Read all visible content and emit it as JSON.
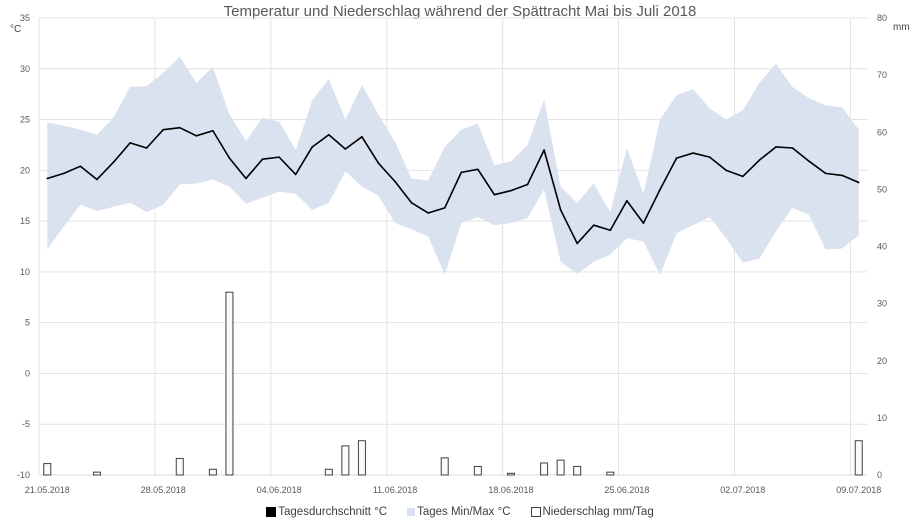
{
  "chart_data": {
    "type": "line",
    "title": "Temperatur und Niederschlag während der Spättracht Mai bis Juli 2018",
    "ylabel_left": "°C",
    "ylabel_right": "mm",
    "ylim_left": [
      -10,
      35
    ],
    "ylim_right": [
      0,
      80
    ],
    "yticks_left": [
      35,
      30,
      25,
      20,
      15,
      10,
      5,
      0,
      -5,
      -10
    ],
    "yticks_right": [
      80,
      70,
      60,
      50,
      40,
      30,
      20,
      10,
      0
    ],
    "xtick_labels": [
      "21.05.2018",
      "28.05.2018",
      "04.06.2018",
      "11.06.2018",
      "18.06.2018",
      "25.06.2018",
      "02.07.2018",
      "09.07.2018"
    ],
    "grid": true,
    "legend_position": "bottom",
    "start_date": "21.05.2018",
    "days": 50,
    "series": [
      {
        "name": "Tagesdurchschnitt °C",
        "type": "line",
        "axis": "left",
        "color": "#000000",
        "values": [
          19.2,
          19.7,
          20.4,
          19.1,
          20.8,
          22.7,
          22.2,
          24.0,
          24.2,
          23.4,
          23.9,
          21.2,
          19.2,
          21.1,
          21.3,
          19.6,
          22.3,
          23.5,
          22.1,
          23.3,
          20.7,
          18.9,
          16.8,
          15.8,
          16.3,
          19.8,
          20.1,
          17.6,
          18.0,
          18.6,
          22.0,
          16.1,
          12.8,
          14.6,
          14.1,
          17.0,
          14.8,
          18.1,
          21.2,
          21.7,
          21.3,
          20.0,
          19.4,
          21.0,
          22.3,
          22.2,
          20.9,
          19.7,
          19.5,
          18.8
        ]
      },
      {
        "name": "Tages Min/Max °C",
        "type": "area-band",
        "axis": "left",
        "color": "#dae2f0",
        "max": [
          24.7,
          24.4,
          24.0,
          23.5,
          25.2,
          28.2,
          28.3,
          29.6,
          31.2,
          28.6,
          30.2,
          25.5,
          22.9,
          25.2,
          24.8,
          22.0,
          26.9,
          29.0,
          25.0,
          28.4,
          25.5,
          22.8,
          19.2,
          19.0,
          22.3,
          24.0,
          24.6,
          20.5,
          20.9,
          22.5,
          27.0,
          18.4,
          16.8,
          18.7,
          15.9,
          22.2,
          17.7,
          25.0,
          27.4,
          28.0,
          26.1,
          25.0,
          25.9,
          28.6,
          30.5,
          28.2,
          27.1,
          26.4,
          26.2,
          24.0
        ],
        "min": [
          12.2,
          14.5,
          16.6,
          16.0,
          16.4,
          16.8,
          15.9,
          16.6,
          18.6,
          18.7,
          19.1,
          18.4,
          16.7,
          17.3,
          17.9,
          17.7,
          16.1,
          16.8,
          19.9,
          18.4,
          17.5,
          14.8,
          14.2,
          13.5,
          9.7,
          14.8,
          15.4,
          14.6,
          14.8,
          15.3,
          18.1,
          11.0,
          9.8,
          11.0,
          11.7,
          13.3,
          13.0,
          9.7,
          13.8,
          14.6,
          15.4,
          13.3,
          10.9,
          11.3,
          14.0,
          16.3,
          15.6,
          12.2,
          12.3,
          13.6
        ]
      },
      {
        "name": "Niederschlag mm/Tag",
        "type": "bar",
        "axis": "right",
        "color": "#fdfbf8",
        "values": [
          2.0,
          0,
          0,
          0.5,
          0,
          0,
          0,
          0,
          2.9,
          0,
          1.0,
          32.0,
          0,
          0,
          0,
          0,
          0,
          1.0,
          5.1,
          6.0,
          0,
          0,
          0,
          0,
          3.0,
          0,
          1.5,
          0,
          0.3,
          0,
          2.1,
          2.6,
          1.5,
          0,
          0.5,
          0,
          0,
          0,
          0,
          0,
          0,
          0,
          0,
          0,
          0,
          0,
          0,
          0,
          0,
          6.0
        ]
      }
    ]
  },
  "legend": {
    "avg": "Tagesdurchschnitt °C",
    "band": "Tages Min/Max °C",
    "rain": "Niederschlag mm/Tag"
  }
}
